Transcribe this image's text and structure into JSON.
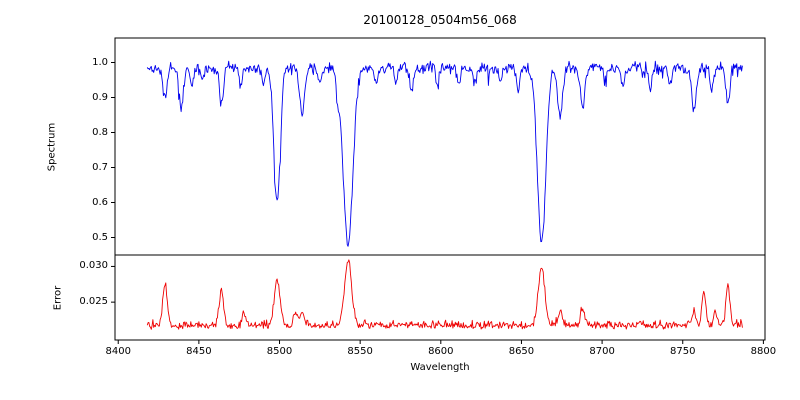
{
  "chart_data": [
    {
      "type": "line",
      "title": "20100128_0504m56_068",
      "ylabel": "Spectrum",
      "color": "#0000ee",
      "x_range": [
        8418,
        8787
      ],
      "xlim": [
        8398,
        8801
      ],
      "ylim": [
        0.45,
        1.07
      ],
      "yticks": [
        {
          "value": 0.5,
          "label": "0.5"
        },
        {
          "value": 0.6,
          "label": "0.6"
        },
        {
          "value": 0.7,
          "label": "0.7"
        },
        {
          "value": 0.8,
          "label": "0.8"
        },
        {
          "value": 0.9,
          "label": "0.9"
        },
        {
          "value": 1.0,
          "label": "1.0"
        }
      ],
      "continuum": 0.985,
      "noise_amplitude": 0.02,
      "absorption_lines": [
        {
          "center": 8429,
          "depth": 0.09,
          "width": 1.3
        },
        {
          "center": 8439,
          "depth": 0.11,
          "width": 1.4
        },
        {
          "center": 8446,
          "depth": 0.05,
          "width": 1.0
        },
        {
          "center": 8452,
          "depth": 0.04,
          "width": 1.0
        },
        {
          "center": 8464,
          "depth": 0.1,
          "width": 1.3
        },
        {
          "center": 8476,
          "depth": 0.05,
          "width": 1.0
        },
        {
          "center": 8490,
          "depth": 0.05,
          "width": 1.0
        },
        {
          "center": 8498.5,
          "depth": 0.385,
          "width": 2.0
        },
        {
          "center": 8514,
          "depth": 0.13,
          "width": 1.6
        },
        {
          "center": 8525,
          "depth": 0.05,
          "width": 1.0
        },
        {
          "center": 8536,
          "depth": 0.06,
          "width": 1.0
        },
        {
          "center": 8542.5,
          "depth": 0.5,
          "width": 3.0
        },
        {
          "center": 8560,
          "depth": 0.05,
          "width": 1.0
        },
        {
          "center": 8572,
          "depth": 0.04,
          "width": 1.0
        },
        {
          "center": 8582,
          "depth": 0.06,
          "width": 1.2
        },
        {
          "center": 8598,
          "depth": 0.05,
          "width": 1.0
        },
        {
          "center": 8611,
          "depth": 0.04,
          "width": 1.0
        },
        {
          "center": 8621,
          "depth": 0.05,
          "width": 1.0
        },
        {
          "center": 8637,
          "depth": 0.04,
          "width": 1.0
        },
        {
          "center": 8648,
          "depth": 0.06,
          "width": 1.0
        },
        {
          "center": 8662.5,
          "depth": 0.5,
          "width": 2.6
        },
        {
          "center": 8674,
          "depth": 0.13,
          "width": 1.6
        },
        {
          "center": 8688,
          "depth": 0.11,
          "width": 1.4
        },
        {
          "center": 8702,
          "depth": 0.04,
          "width": 1.0
        },
        {
          "center": 8713,
          "depth": 0.05,
          "width": 1.0
        },
        {
          "center": 8730,
          "depth": 0.06,
          "width": 1.0
        },
        {
          "center": 8742,
          "depth": 0.05,
          "width": 1.0
        },
        {
          "center": 8757,
          "depth": 0.12,
          "width": 1.4
        },
        {
          "center": 8768,
          "depth": 0.07,
          "width": 1.1
        },
        {
          "center": 8778,
          "depth": 0.1,
          "width": 1.2
        }
      ]
    },
    {
      "type": "line",
      "ylabel": "Error",
      "xlabel": "Wavelength",
      "color": "#ee0000",
      "x_range": [
        8418,
        8787
      ],
      "ylim": [
        0.0197,
        0.0316
      ],
      "yticks": [
        {
          "value": 0.025,
          "label": "0.025"
        },
        {
          "value": 0.03,
          "label": "0.030"
        }
      ],
      "xticks": [
        {
          "value": 8400,
          "label": "8400"
        },
        {
          "value": 8450,
          "label": "8450"
        },
        {
          "value": 8500,
          "label": "8500"
        },
        {
          "value": 8550,
          "label": "8550"
        },
        {
          "value": 8600,
          "label": "8600"
        },
        {
          "value": 8650,
          "label": "8650"
        },
        {
          "value": 8700,
          "label": "8700"
        },
        {
          "value": 8750,
          "label": "8750"
        },
        {
          "value": 8800,
          "label": "8800"
        }
      ],
      "baseline": 0.0214,
      "noise_amplitude": 0.0007,
      "spikes": [
        {
          "center": 8429,
          "height": 0.0058,
          "width": 1.4
        },
        {
          "center": 8464,
          "height": 0.0048,
          "width": 1.4
        },
        {
          "center": 8478,
          "height": 0.0015,
          "width": 1.0
        },
        {
          "center": 8498.5,
          "height": 0.0062,
          "width": 1.8
        },
        {
          "center": 8510,
          "height": 0.002,
          "width": 1.2
        },
        {
          "center": 8514,
          "height": 0.0022,
          "width": 1.2
        },
        {
          "center": 8542.5,
          "height": 0.009,
          "width": 2.2
        },
        {
          "center": 8662.5,
          "height": 0.0082,
          "width": 2.0
        },
        {
          "center": 8674,
          "height": 0.002,
          "width": 1.3
        },
        {
          "center": 8688,
          "height": 0.0025,
          "width": 1.3
        },
        {
          "center": 8757,
          "height": 0.002,
          "width": 1.2
        },
        {
          "center": 8763,
          "height": 0.0048,
          "width": 1.2
        },
        {
          "center": 8770,
          "height": 0.0022,
          "width": 1.0
        },
        {
          "center": 8778,
          "height": 0.0055,
          "width": 1.2
        }
      ]
    }
  ]
}
